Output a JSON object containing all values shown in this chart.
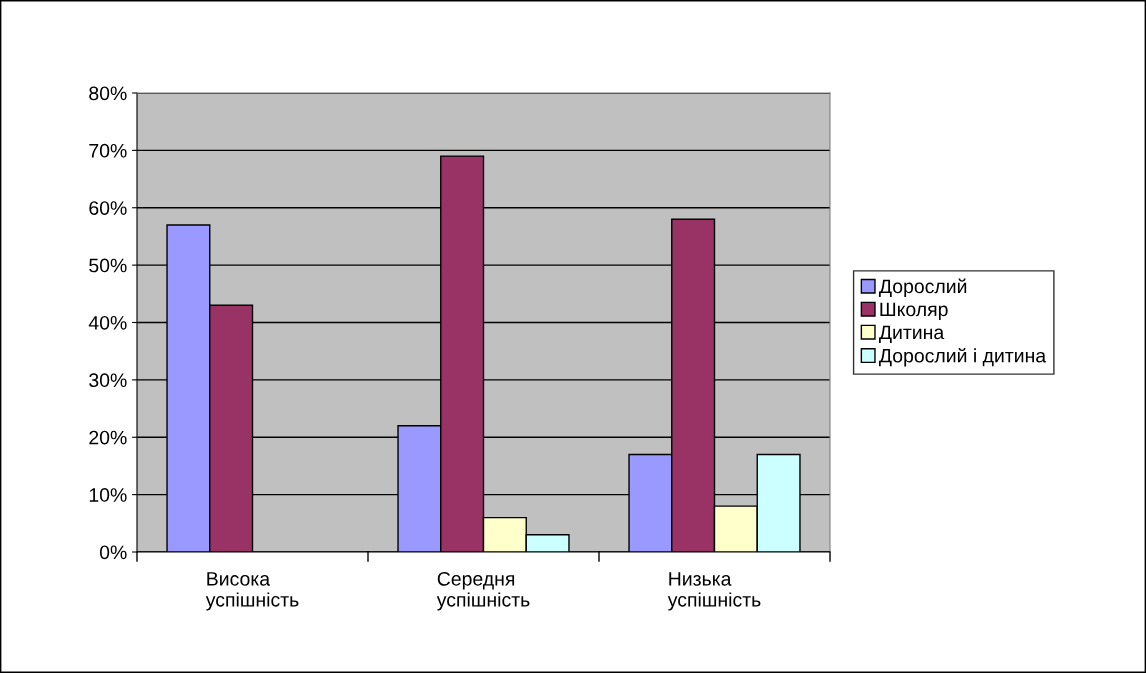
{
  "chart_data": {
    "type": "bar",
    "categories": [
      "Висока\nуспішність",
      "Середня\nуспішність",
      "Низька\nуспішність"
    ],
    "series": [
      {
        "name": "Дорослий",
        "color": "#9999ff",
        "values": [
          57,
          22,
          17
        ]
      },
      {
        "name": "Школяр",
        "color": "#993366",
        "values": [
          43,
          69,
          58
        ]
      },
      {
        "name": "Дитина",
        "color": "#ffffcc",
        "values": [
          null,
          6,
          8
        ]
      },
      {
        "name": "Дорослий і дитина",
        "color": "#ccffff",
        "values": [
          null,
          3,
          17
        ]
      }
    ],
    "ylim": [
      0,
      80
    ],
    "yticks": [
      {
        "value": 0,
        "label": "0%"
      },
      {
        "value": 10,
        "label": "10%"
      },
      {
        "value": 20,
        "label": "20%"
      },
      {
        "value": 30,
        "label": "30%"
      },
      {
        "value": 40,
        "label": "40%"
      },
      {
        "value": 50,
        "label": "50%"
      },
      {
        "value": 60,
        "label": "60%"
      },
      {
        "value": 70,
        "label": "70%"
      },
      {
        "value": 80,
        "label": "80%"
      }
    ],
    "grid": "y",
    "legend": "right"
  }
}
